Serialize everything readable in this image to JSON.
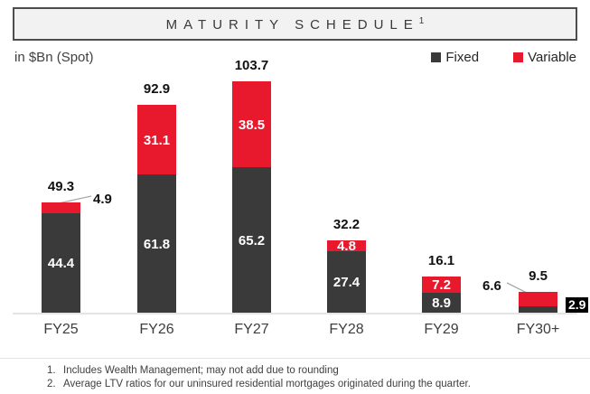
{
  "title": {
    "text": "MATURITY SCHEDULE",
    "superscript": "1"
  },
  "units_label": "in $Bn (Spot)",
  "legend": {
    "items": [
      {
        "label": "Fixed",
        "color": "#3a3a3a"
      },
      {
        "label": "Variable",
        "color": "#e8192c"
      }
    ]
  },
  "chart_data": {
    "type": "bar",
    "stacked": true,
    "title": "MATURITY SCHEDULE¹",
    "units": "in $Bn (Spot)",
    "categories": [
      "FY25",
      "FY26",
      "FY27",
      "FY28",
      "FY29",
      "FY30+"
    ],
    "series": [
      {
        "name": "Fixed",
        "color": "#3a3a3a",
        "values": [
          44.4,
          61.8,
          65.2,
          27.4,
          8.9,
          2.9
        ]
      },
      {
        "name": "Variable",
        "color": "#e8192c",
        "values": [
          4.9,
          31.1,
          38.5,
          4.8,
          7.2,
          6.6
        ]
      }
    ],
    "totals": [
      49.3,
      92.9,
      103.7,
      32.2,
      16.1,
      9.5
    ],
    "ylim": [
      0,
      110
    ],
    "gridlines": false,
    "legend_position": "top-right"
  },
  "footnotes": [
    {
      "num": "1.",
      "text": "Includes Wealth Management; may not add due to rounding"
    },
    {
      "num": "2.",
      "text": "Average LTV ratios for our uninsured residential mortgages originated during the quarter."
    }
  ],
  "colors": {
    "fixed": "#3a3a3a",
    "variable": "#e8192c",
    "chip_bg": "#000000",
    "axis_line": "#e4e4e4",
    "leader_line": "#a9a9a9",
    "header_bg": "#f2f2f2",
    "header_border": "#4d4d4d"
  }
}
